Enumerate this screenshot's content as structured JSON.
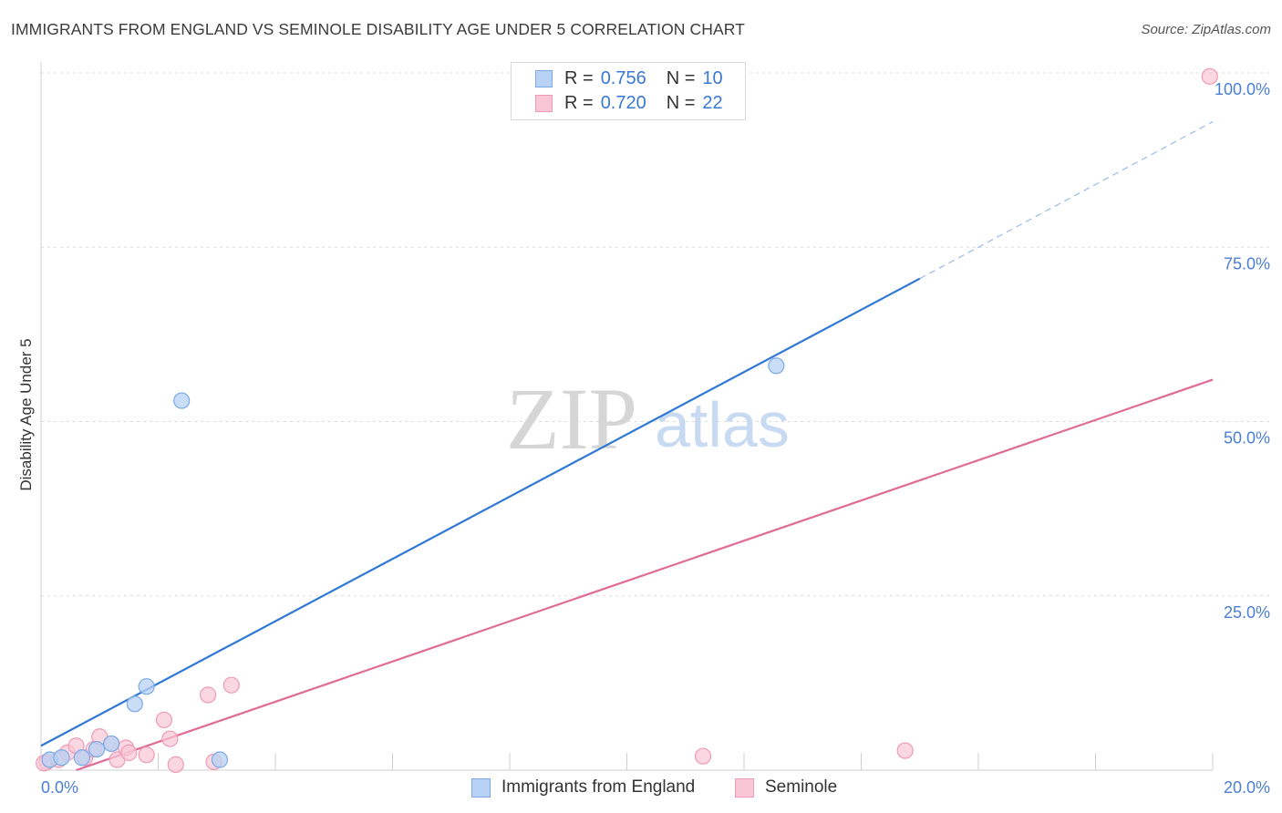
{
  "header": {
    "title": "IMMIGRANTS FROM ENGLAND VS SEMINOLE DISABILITY AGE UNDER 5 CORRELATION CHART",
    "source": "Source: ZipAtlas.com"
  },
  "watermark": {
    "zip": "ZIP",
    "atlas": "atlas"
  },
  "legend": {
    "r_label": "R =",
    "n_label": "N =",
    "rows": [
      {
        "r": "0.756",
        "n": "10"
      },
      {
        "r": "0.720",
        "n": "22"
      }
    ]
  },
  "colors": {
    "england_fill": "#b7d2f4",
    "england_stroke": "#7aa9e6",
    "england_line": "#2f78d6",
    "seminole_fill": "#f9c6d5",
    "seminole_stroke": "#ee9ab4",
    "seminole_line": "#e06b95",
    "tick_text": "#4a7fd4",
    "grid": "#dcdcdc"
  },
  "chart_data": {
    "type": "scatter",
    "title": "IMMIGRANTS FROM ENGLAND VS SEMINOLE DISABILITY AGE UNDER 5 CORRELATION CHART",
    "xlabel": "",
    "ylabel": "Disability Age Under 5",
    "xlim": [
      0,
      20
    ],
    "ylim": [
      0,
      100
    ],
    "x_ticks": [
      "0.0%",
      "20.0%"
    ],
    "y_ticks": [
      {
        "value": 25,
        "label": "25.0%"
      },
      {
        "value": 50,
        "label": "50.0%"
      },
      {
        "value": 75,
        "label": "75.0%"
      },
      {
        "value": 100,
        "label": "100.0%"
      }
    ],
    "grid": true,
    "series": [
      {
        "name": "Immigrants from England",
        "points": [
          {
            "x": 0.15,
            "y": 1.5
          },
          {
            "x": 0.35,
            "y": 1.8
          },
          {
            "x": 0.7,
            "y": 1.8
          },
          {
            "x": 0.95,
            "y": 3.0
          },
          {
            "x": 1.2,
            "y": 3.8
          },
          {
            "x": 1.6,
            "y": 9.5
          },
          {
            "x": 1.8,
            "y": 12.0
          },
          {
            "x": 2.4,
            "y": 53.0
          },
          {
            "x": 3.05,
            "y": 1.5
          },
          {
            "x": 12.55,
            "y": 58.0
          }
        ],
        "trend": {
          "x0": 0,
          "y0": 3.5,
          "x1": 15.0,
          "y1": 70.5,
          "dashed_to_x": 20,
          "dashed_to_y": 93.0
        }
      },
      {
        "name": "Seminole",
        "points": [
          {
            "x": 0.1,
            "y": 1.2
          },
          {
            "x": 0.3,
            "y": 1.5
          },
          {
            "x": 0.45,
            "y": 2.5
          },
          {
            "x": 0.6,
            "y": 3.5
          },
          {
            "x": 0.75,
            "y": 1.8
          },
          {
            "x": 0.9,
            "y": 3.0
          },
          {
            "x": 1.0,
            "y": 4.8
          },
          {
            "x": 1.2,
            "y": 3.8
          },
          {
            "x": 1.3,
            "y": 1.5
          },
          {
            "x": 1.45,
            "y": 3.2
          },
          {
            "x": 1.5,
            "y": 2.5
          },
          {
            "x": 1.8,
            "y": 2.2
          },
          {
            "x": 2.1,
            "y": 7.2
          },
          {
            "x": 2.2,
            "y": 4.5
          },
          {
            "x": 2.3,
            "y": 0.8
          },
          {
            "x": 2.85,
            "y": 10.8
          },
          {
            "x": 2.95,
            "y": 1.2
          },
          {
            "x": 3.25,
            "y": 12.2
          },
          {
            "x": 11.3,
            "y": 2.0
          },
          {
            "x": 14.75,
            "y": 2.8
          },
          {
            "x": 19.95,
            "y": 99.5
          },
          {
            "x": 0.05,
            "y": 1.0
          }
        ],
        "trend": {
          "x0": 0.6,
          "y0": 0.0,
          "x1": 20,
          "y1": 56.0
        }
      }
    ]
  },
  "bottom_legend": [
    {
      "label": "Immigrants from England"
    },
    {
      "label": "Seminole"
    }
  ]
}
